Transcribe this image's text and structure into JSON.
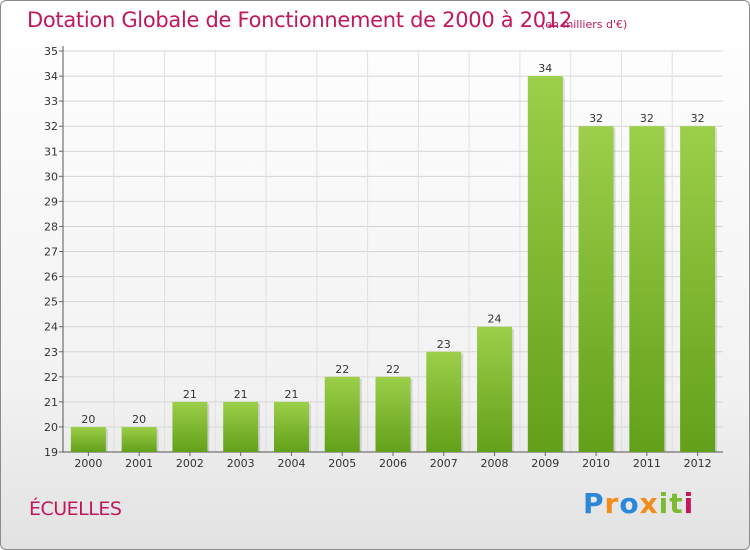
{
  "header": {
    "title": "Dotation Globale de Fonctionnement de 2000 à 2012",
    "subtitle": "(en milliers d'€)"
  },
  "footer": {
    "commune": "ÉCUELLES",
    "brand": "Proxiti"
  },
  "colors": {
    "title": "#c2185b",
    "bar_light": "#9ccf4a",
    "bar_dark": "#63a019",
    "brand_letters": [
      "#2b88d8",
      "#f28c1a",
      "#2b88d8",
      "#f28c1a",
      "#7cba2f",
      "#7cba2f",
      "#c2185b"
    ]
  },
  "chart_data": {
    "type": "bar",
    "categories": [
      "2000",
      "2001",
      "2002",
      "2003",
      "2004",
      "2005",
      "2006",
      "2007",
      "2008",
      "2009",
      "2010",
      "2011",
      "2012"
    ],
    "values": [
      20,
      20,
      21,
      21,
      21,
      22,
      22,
      23,
      24,
      34,
      32,
      32,
      32
    ],
    "data_labels": [
      "20",
      "20",
      "21",
      "21",
      "21",
      "22",
      "22",
      "23",
      "24",
      "34",
      "32",
      "32",
      "32"
    ],
    "title": "Dotation Globale de Fonctionnement de 2000 à 2012",
    "xlabel": "",
    "ylabel": "",
    "ylim": [
      19,
      35
    ],
    "yticks": [
      "19",
      "20",
      "21",
      "22",
      "23",
      "24",
      "25",
      "26",
      "27",
      "28",
      "29",
      "30",
      "31",
      "32",
      "33",
      "34",
      "35"
    ],
    "grid": true
  }
}
